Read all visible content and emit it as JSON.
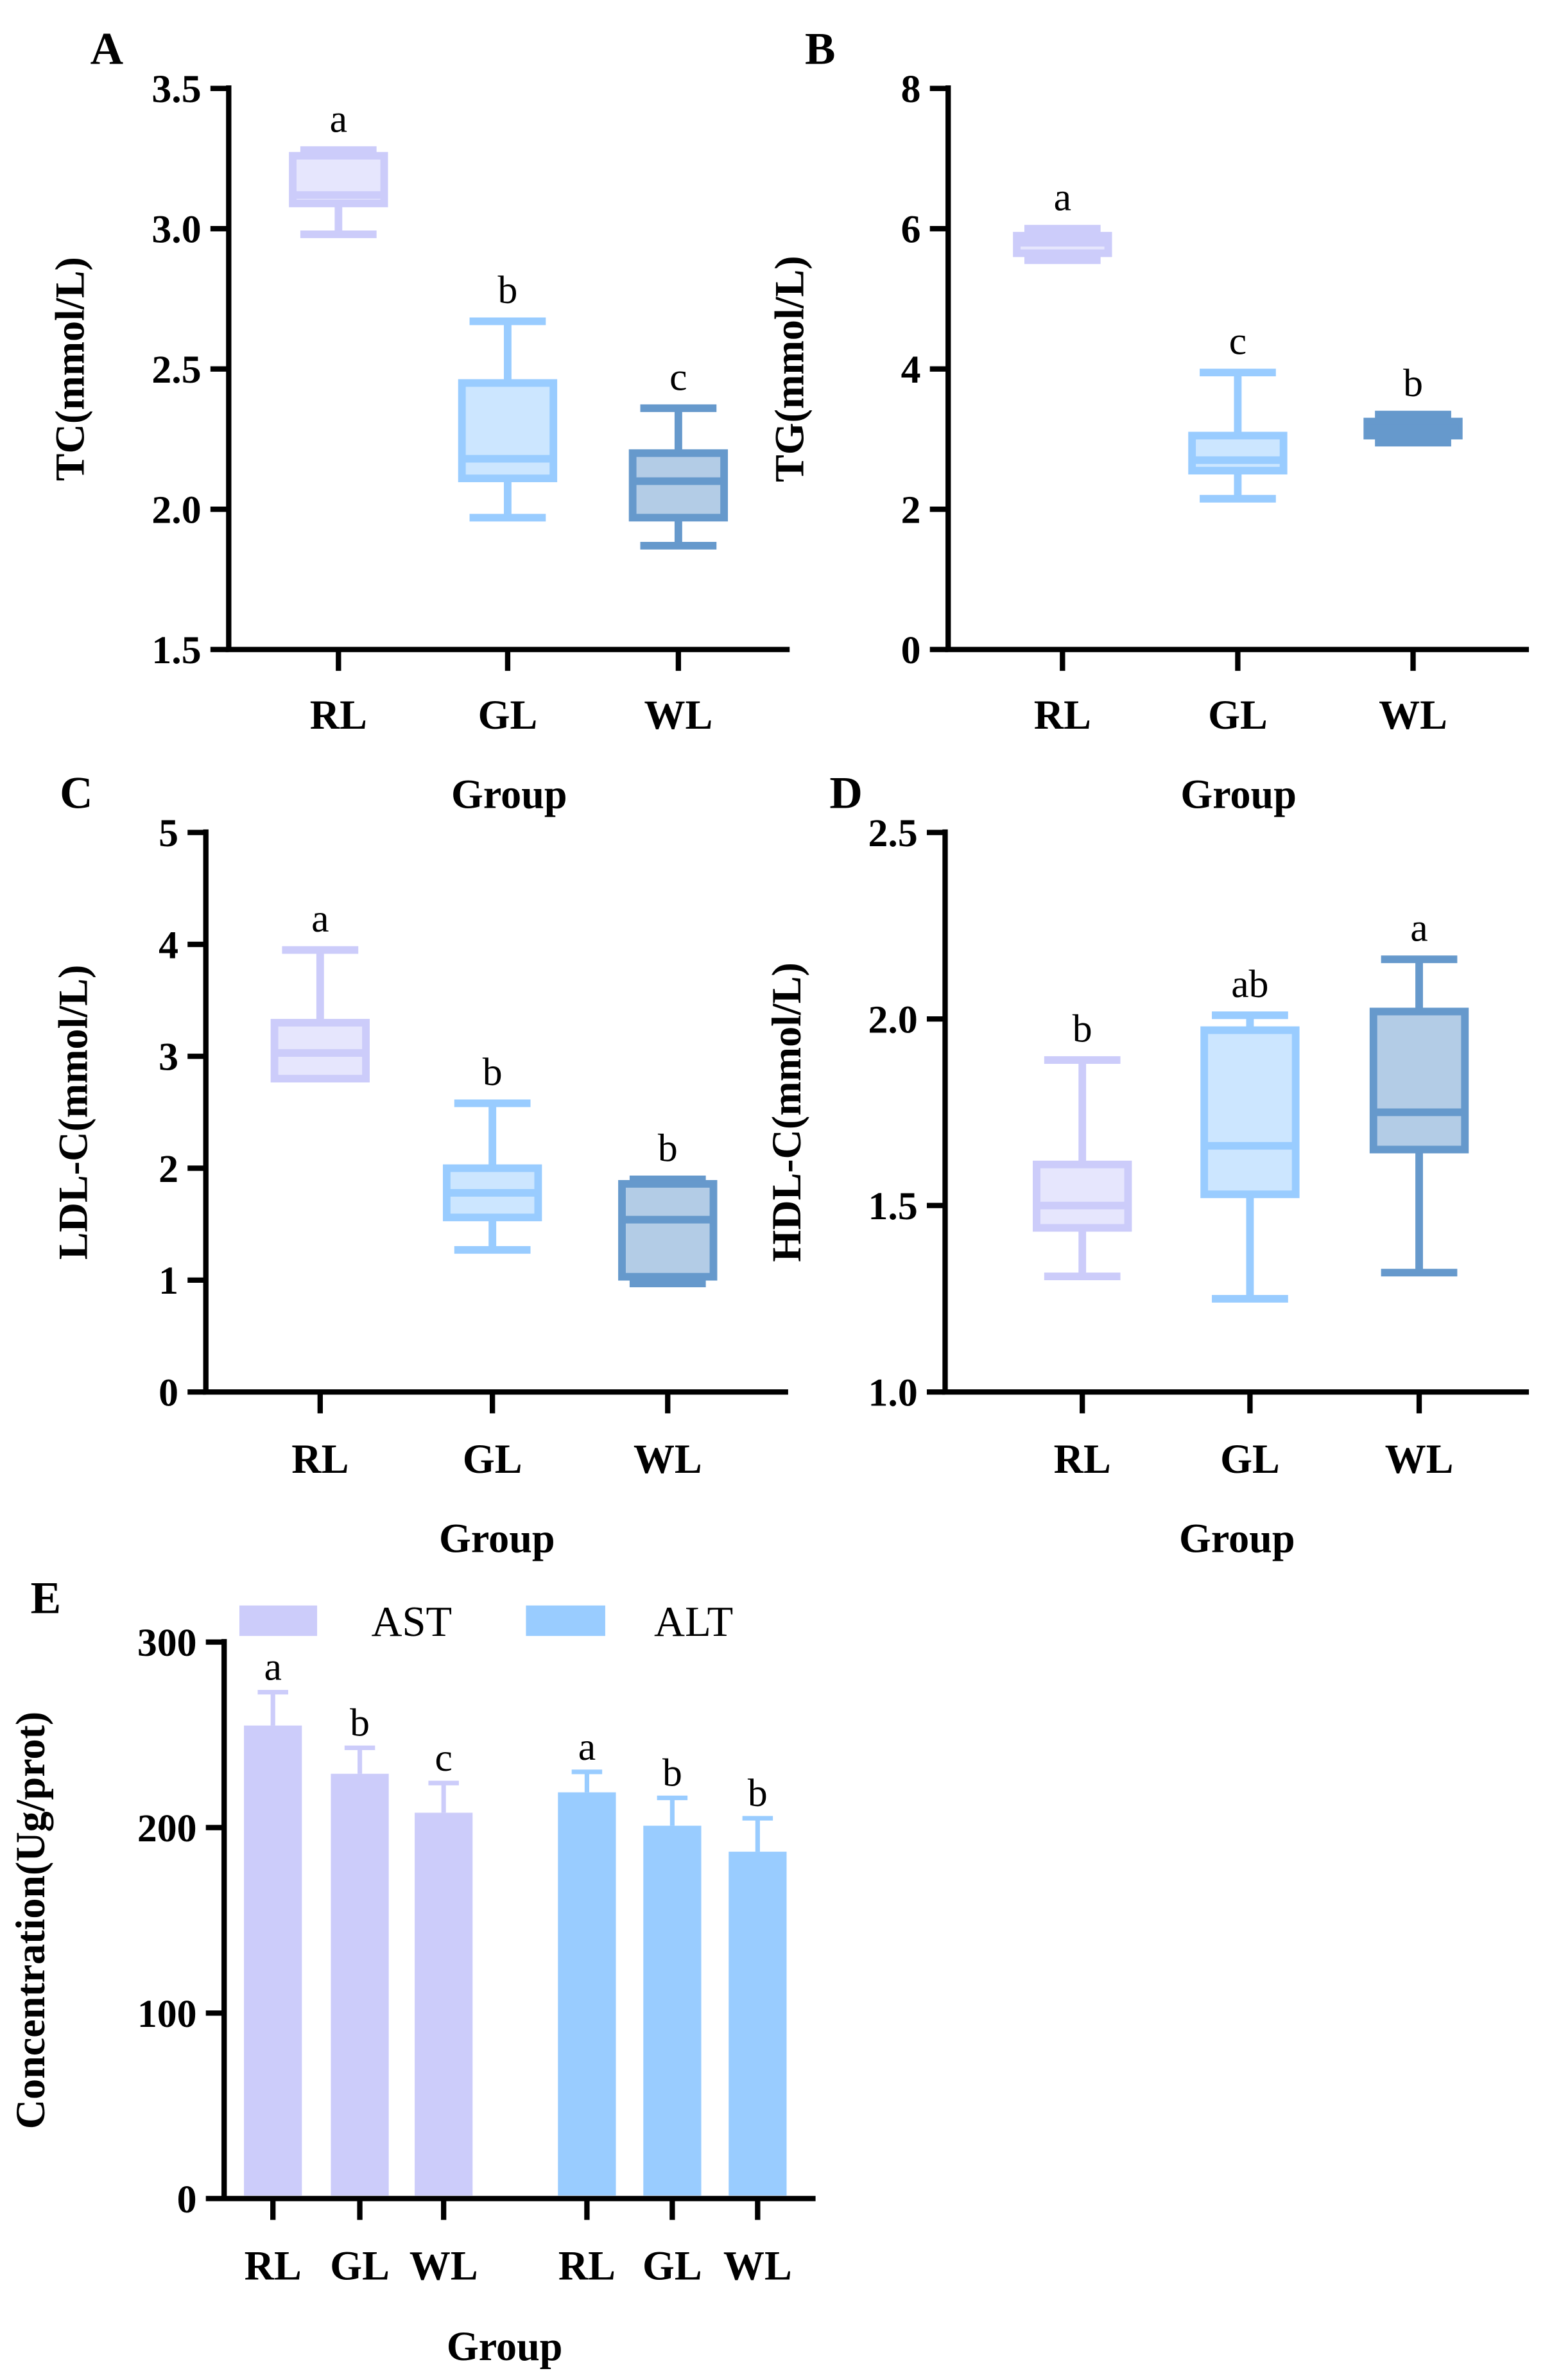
{
  "colors": {
    "RL": "#CCCCFA",
    "GL": "#99CCFF",
    "WL": "#6699CC",
    "axis": "#000000"
  },
  "chart_data": [
    {
      "panel": "A",
      "type": "box",
      "ylabel": "TC(mmol/L)",
      "xlabel": "Group",
      "ylim": [
        1.5,
        3.5
      ],
      "yticks": [
        "1.5",
        "2.0",
        "2.5",
        "3.0",
        "3.5"
      ],
      "ytickvals": [
        1.5,
        2.0,
        2.5,
        3.0,
        3.5
      ],
      "categories": [
        "RL",
        "GL",
        "WL"
      ],
      "boxes": [
        {
          "min": 2.98,
          "q1": 3.09,
          "median": 3.12,
          "q3": 3.26,
          "max": 3.28,
          "sig": "a"
        },
        {
          "min": 1.97,
          "q1": 2.11,
          "median": 2.18,
          "q3": 2.45,
          "max": 2.67,
          "sig": "b"
        },
        {
          "min": 1.87,
          "q1": 1.97,
          "median": 2.1,
          "q3": 2.2,
          "max": 2.36,
          "sig": "c"
        }
      ]
    },
    {
      "panel": "B",
      "type": "box",
      "ylabel": "TG(mmol/L)",
      "xlabel": "Group",
      "ylim": [
        0,
        8
      ],
      "yticks": [
        "0",
        "2",
        "4",
        "6",
        "8"
      ],
      "ytickvals": [
        0,
        2,
        4,
        6,
        8
      ],
      "categories": [
        "RL",
        "GL",
        "WL"
      ],
      "boxes": [
        {
          "min": 5.55,
          "q1": 5.65,
          "median": 5.8,
          "q3": 5.9,
          "max": 6.0,
          "sig": "a"
        },
        {
          "min": 2.15,
          "q1": 2.55,
          "median": 2.7,
          "q3": 3.05,
          "max": 3.95,
          "sig": "c"
        },
        {
          "min": 2.95,
          "q1": 3.05,
          "median": 3.15,
          "q3": 3.25,
          "max": 3.35,
          "sig": "b"
        }
      ]
    },
    {
      "panel": "C",
      "type": "box",
      "ylabel": "LDL-C(mmol/L)",
      "xlabel": "Group",
      "ylim": [
        0,
        5
      ],
      "yticks": [
        "0",
        "1",
        "2",
        "3",
        "4",
        "5"
      ],
      "ytickvals": [
        0,
        1,
        2,
        3,
        4,
        5
      ],
      "categories": [
        "RL",
        "GL",
        "WL"
      ],
      "boxes": [
        {
          "min": 2.8,
          "q1": 2.8,
          "median": 3.03,
          "q3": 3.3,
          "max": 3.95,
          "sig": "a"
        },
        {
          "min": 1.27,
          "q1": 1.56,
          "median": 1.78,
          "q3": 2.0,
          "max": 2.58,
          "sig": "b"
        },
        {
          "min": 0.97,
          "q1": 1.03,
          "median": 1.54,
          "q3": 1.86,
          "max": 1.9,
          "sig": "b"
        }
      ]
    },
    {
      "panel": "D",
      "type": "box",
      "ylabel": "HDL-C(mmol/L)",
      "xlabel": "Group",
      "ylim": [
        1.0,
        2.5
      ],
      "yticks": [
        "1.0",
        "1.5",
        "2.0",
        "2.5"
      ],
      "ytickvals": [
        1.0,
        1.5,
        2.0,
        2.5
      ],
      "categories": [
        "RL",
        "GL",
        "WL"
      ],
      "boxes": [
        {
          "min": 1.31,
          "q1": 1.44,
          "median": 1.5,
          "q3": 1.61,
          "max": 1.89,
          "sig": "b"
        },
        {
          "min": 1.25,
          "q1": 1.53,
          "median": 1.66,
          "q3": 1.97,
          "max": 2.01,
          "sig": "ab"
        },
        {
          "min": 1.32,
          "q1": 1.65,
          "median": 1.75,
          "q3": 2.02,
          "max": 2.16,
          "sig": "a"
        }
      ]
    },
    {
      "panel": "E",
      "type": "bar",
      "ylabel": "Concentration(Ug/prot)",
      "xlabel": "Group",
      "ylim": [
        0,
        300
      ],
      "yticks": [
        "0",
        "100",
        "200",
        "300"
      ],
      "ytickvals": [
        0,
        100,
        200,
        300
      ],
      "categories": [
        "RL",
        "GL",
        "WL"
      ],
      "series": [
        {
          "name": "AST",
          "values": [
            255,
            229,
            208
          ],
          "errors": [
            18,
            14,
            16
          ],
          "sig": [
            "a",
            "b",
            "c"
          ]
        },
        {
          "name": "ALT",
          "values": [
            219,
            201,
            187
          ],
          "errors": [
            11,
            15,
            18
          ],
          "sig": [
            "a",
            "b",
            "b"
          ]
        }
      ]
    }
  ]
}
